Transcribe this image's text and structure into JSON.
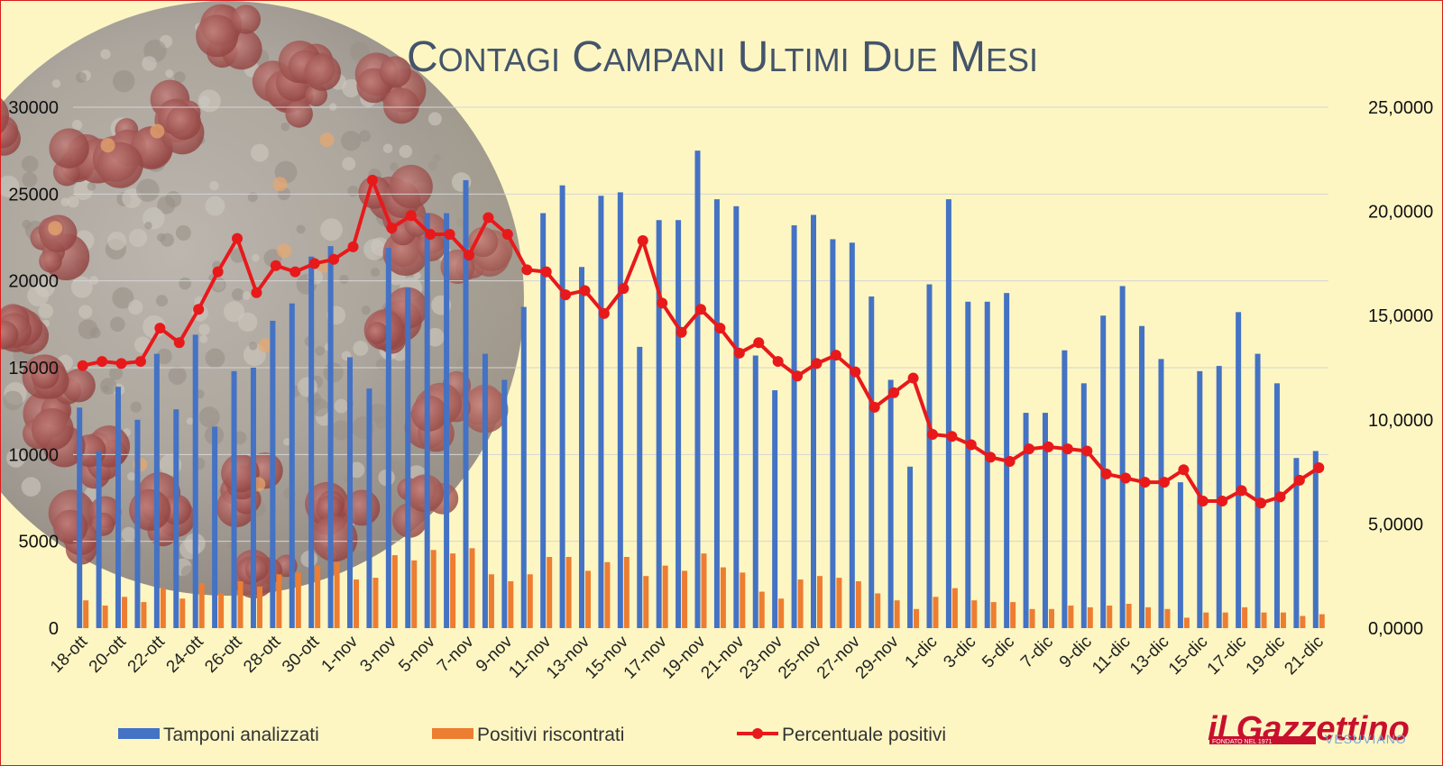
{
  "chart_data": {
    "type": "bar",
    "title": "Contagi Campani ultimi due mesi",
    "categories": [
      "18-ott",
      "19-ott",
      "20-ott",
      "21-ott",
      "22-ott",
      "23-ott",
      "24-ott",
      "25-ott",
      "26-ott",
      "27-ott",
      "28-ott",
      "29-ott",
      "30-ott",
      "31-ott",
      "1-nov",
      "2-nov",
      "3-nov",
      "4-nov",
      "5-nov",
      "6-nov",
      "7-nov",
      "8-nov",
      "9-nov",
      "10-nov",
      "11-nov",
      "12-nov",
      "13-nov",
      "14-nov",
      "15-nov",
      "16-nov",
      "17-nov",
      "18-nov",
      "19-nov",
      "20-nov",
      "21-nov",
      "22-nov",
      "23-nov",
      "24-nov",
      "25-nov",
      "26-nov",
      "27-nov",
      "28-nov",
      "29-nov",
      "30-nov",
      "1-dic",
      "2-dic",
      "3-dic",
      "4-dic",
      "5-dic",
      "6-dic",
      "7-dic",
      "8-dic",
      "9-dic",
      "10-dic",
      "11-dic",
      "12-dic",
      "13-dic",
      "14-dic",
      "15-dic",
      "16-dic",
      "17-dic",
      "18-dic",
      "19-dic",
      "20-dic",
      "21-dic"
    ],
    "tick_labels": [
      "18-ott",
      "20-ott",
      "22-ott",
      "24-ott",
      "26-ott",
      "28-ott",
      "30-ott",
      "1-nov",
      "3-nov",
      "5-nov",
      "7-nov",
      "9-nov",
      "11-nov",
      "13-nov",
      "15-nov",
      "17-nov",
      "19-nov",
      "21-nov",
      "23-nov",
      "25-nov",
      "27-nov",
      "29-nov",
      "1-dic",
      "3-dic",
      "5-dic",
      "7-dic",
      "9-dic",
      "11-dic",
      "13-dic",
      "15-dic",
      "17-dic",
      "19-dic",
      "21-dic"
    ],
    "series": [
      {
        "name": "Tamponi analizzati",
        "axis": "left",
        "color": "#4472C4",
        "values": [
          12700,
          10200,
          13900,
          12000,
          15800,
          12600,
          16900,
          11600,
          14800,
          15000,
          17700,
          18700,
          21400,
          22000,
          15600,
          13800,
          21900,
          19600,
          23900,
          23900,
          25800,
          15800,
          14300,
          18500,
          23900,
          25500,
          20800,
          24900,
          25100,
          16200,
          23500,
          23500,
          27500,
          24700,
          24300,
          15700,
          13700,
          23200,
          23800,
          22400,
          22200,
          19100,
          14300,
          9300,
          19800,
          24700,
          18800,
          18800,
          19300,
          12400,
          12400,
          16000,
          14100,
          18000,
          19700,
          17400,
          15500,
          8400,
          14800,
          15100,
          18200,
          15800,
          14100,
          9800,
          10200
        ]
      },
      {
        "name": "Positivi riscontrati",
        "axis": "left",
        "color": "#ED7D31",
        "values": [
          1600,
          1300,
          1800,
          1500,
          2300,
          1700,
          2600,
          2000,
          2700,
          2400,
          3100,
          3200,
          3600,
          3800,
          2800,
          2900,
          4200,
          3900,
          4500,
          4300,
          4600,
          3100,
          2700,
          3100,
          4100,
          4100,
          3300,
          3800,
          4100,
          3000,
          3600,
          3300,
          4300,
          3500,
          3200,
          2100,
          1700,
          2800,
          3000,
          2900,
          2700,
          2000,
          1600,
          1100,
          1800,
          2300,
          1600,
          1500,
          1500,
          1100,
          1100,
          1300,
          1200,
          1300,
          1400,
          1200,
          1100,
          600,
          900,
          900,
          1200,
          900,
          900,
          700,
          800
        ]
      },
      {
        "name": "Percentuale positivi",
        "axis": "right",
        "color": "#E8191B",
        "values": [
          12.6,
          12.8,
          12.7,
          12.8,
          14.4,
          13.7,
          15.3,
          17.1,
          18.7,
          16.1,
          17.4,
          17.1,
          17.5,
          17.7,
          18.3,
          21.5,
          19.2,
          19.8,
          18.9,
          18.9,
          17.9,
          19.7,
          18.9,
          17.2,
          17.1,
          16.0,
          16.2,
          15.1,
          16.3,
          18.6,
          15.6,
          14.2,
          15.3,
          14.4,
          13.2,
          13.7,
          12.8,
          12.1,
          12.7,
          13.1,
          12.3,
          10.6,
          11.3,
          12.0,
          9.3,
          9.2,
          8.8,
          8.2,
          8.0,
          8.6,
          8.7,
          8.6,
          8.5,
          7.4,
          7.2,
          7.0,
          7.0,
          7.6,
          6.1,
          6.1,
          6.6,
          6.0,
          6.3,
          7.1,
          7.7
        ]
      }
    ],
    "y_left": {
      "ylim": [
        0,
        30000
      ],
      "ticks": [
        "0",
        "5000",
        "10000",
        "15000",
        "20000",
        "25000",
        "30000"
      ]
    },
    "y_right": {
      "ylim": [
        0,
        25
      ],
      "ticks": [
        "0,0000",
        "5,0000",
        "10,0000",
        "15,0000",
        "20,0000",
        "25,0000"
      ]
    },
    "grid": true,
    "legend": "bottom"
  },
  "brand": {
    "logo_text": "il Gazzettino",
    "logo_sub": "VESUVIANO",
    "logo_tagline": "FONDATO NEL 1971",
    "logo_color": "#c8102e"
  },
  "colors": {
    "background": "#fdf6c3",
    "title": "#44546A",
    "grid": "#d4d4d4"
  }
}
